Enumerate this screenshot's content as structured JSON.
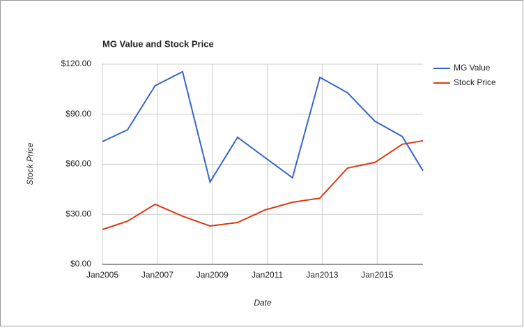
{
  "chart_data": {
    "type": "line",
    "title": "MG Value and Stock Price",
    "x_label": "Date",
    "y_label": "Stock Price",
    "x": [
      "2005-01",
      "2005-12",
      "2006-12",
      "2007-12",
      "2008-12",
      "2009-12",
      "2010-12",
      "2011-12",
      "2012-12",
      "2013-12",
      "2014-12",
      "2015-12",
      "2016-09"
    ],
    "series": [
      {
        "name": "MG Value",
        "color": "#3366cc",
        "values": [
          73.6,
          80.7,
          107.1,
          115.5,
          49.4,
          76.2,
          64,
          51.9,
          112.1,
          102.9,
          85.8,
          76.6,
          56.1
        ]
      },
      {
        "name": "Stock Price",
        "color": "#dc3912",
        "values": [
          20.9,
          25.9,
          36,
          28.9,
          23,
          25.1,
          32.6,
          37.2,
          39.7,
          57.7,
          61.1,
          72,
          74.1
        ]
      }
    ],
    "xlim": [
      "2005-01",
      "2016-09"
    ],
    "xticks": [
      {
        "value": "2005-01",
        "label": "Jan2005"
      },
      {
        "value": "2007-01",
        "label": "Jan2007"
      },
      {
        "value": "2009-01",
        "label": "Jan2009"
      },
      {
        "value": "2011-01",
        "label": "Jan2011"
      },
      {
        "value": "2013-01",
        "label": "Jan2013"
      },
      {
        "value": "2015-01",
        "label": "Jan2015"
      }
    ],
    "ylim": [
      0,
      120
    ],
    "yticks": [
      {
        "value": 0,
        "label": "$0.00"
      },
      {
        "value": 30,
        "label": "$30.00"
      },
      {
        "value": 60,
        "label": "$60.00"
      },
      {
        "value": 90,
        "label": "$90.00"
      },
      {
        "value": 120,
        "label": "$120.00"
      }
    ],
    "grid": true,
    "legend": "right"
  }
}
